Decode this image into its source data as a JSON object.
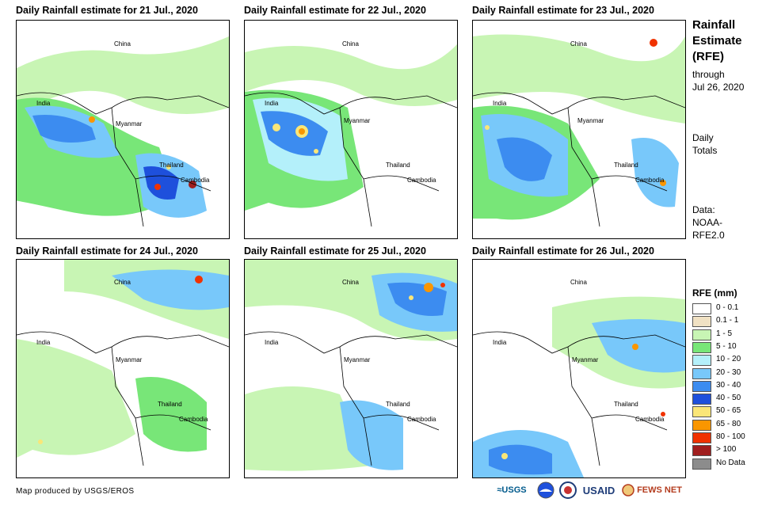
{
  "panels": [
    {
      "title": "Daily Rainfall estimate for 21 Jul., 2020"
    },
    {
      "title": "Daily Rainfall estimate for 22 Jul., 2020"
    },
    {
      "title": "Daily Rainfall estimate for 23 Jul., 2020"
    },
    {
      "title": "Daily Rainfall estimate for 24 Jul., 2020"
    },
    {
      "title": "Daily Rainfall estimate for 25 Jul., 2020"
    },
    {
      "title": "Daily Rainfall estimate for 26 Jul., 2020"
    }
  ],
  "labels": {
    "china": "China",
    "india": "India",
    "myanmar": "Myanmar",
    "thailand": "Thailand",
    "cambodia": "Cambodia"
  },
  "side": {
    "title_line1": "Rainfall",
    "title_line2": "Estimate",
    "title_line3": "(RFE)",
    "through": "through",
    "date": "Jul 26, 2020",
    "daily": "Daily",
    "totals": "Totals",
    "data_label": "Data:",
    "source1": "NOAA-",
    "source2": "RFE2.0"
  },
  "legend": {
    "title": "RFE (mm)",
    "items": [
      {
        "label": "0 - 0.1",
        "color": "#ffffff"
      },
      {
        "label": "0.1 - 1",
        "color": "#f0e1c3"
      },
      {
        "label": "1 - 5",
        "color": "#c8f5b4"
      },
      {
        "label": "5 - 10",
        "color": "#78e678"
      },
      {
        "label": "10 - 20",
        "color": "#b4f0fa"
      },
      {
        "label": "20 - 30",
        "color": "#78c8fa"
      },
      {
        "label": "30 - 40",
        "color": "#3c8cf0"
      },
      {
        "label": "40 - 50",
        "color": "#1e50dc"
      },
      {
        "label": "50 - 65",
        "color": "#fae678"
      },
      {
        "label": "65 - 80",
        "color": "#fa9600"
      },
      {
        "label": "80 - 100",
        "color": "#f03200"
      },
      {
        "label": "> 100",
        "color": "#a01e1e"
      },
      {
        "label": "No Data",
        "color": "#8c8c8c"
      }
    ]
  },
  "footer": {
    "credit": "Map produced by USGS/EROS"
  },
  "logos": {
    "usgs": "≈USGS",
    "usaid": "USAID",
    "fewsnet": "FEWS NET"
  }
}
